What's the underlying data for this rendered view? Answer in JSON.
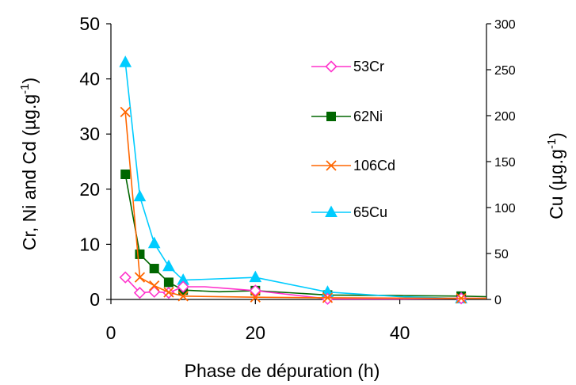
{
  "chart_data": {
    "type": "line",
    "title": "",
    "xlabel": "Phase de dépuration (h)",
    "ylabel": "Cr, Ni and Cd (µg.g-1)",
    "ylabel_parts": [
      "Cr, Ni and Cd (µg.g",
      "-1",
      ")"
    ],
    "y2label": "Cu (µg.g-1)",
    "y2label_parts": [
      "Cu (µg.g",
      "-1",
      ")"
    ],
    "xlim": [
      0,
      52
    ],
    "ylim": [
      0,
      50
    ],
    "y2lim": [
      0,
      300
    ],
    "x_ticks": [
      "0",
      "20",
      "40"
    ],
    "y_ticks": [
      "0",
      "10",
      "20",
      "30",
      "40",
      "50"
    ],
    "y2_ticks": [
      "0",
      "50",
      "100",
      "150",
      "200",
      "250",
      "300"
    ],
    "grid": false,
    "legend_position": "top-right-inside",
    "series": [
      {
        "name": "53Cr",
        "axis": "left",
        "color": "#ff33cc",
        "marker": "diamond-open",
        "points": [
          [
            2,
            4.0
          ],
          [
            4,
            1.2
          ],
          [
            6,
            1.4
          ],
          [
            8,
            1.2
          ],
          [
            10,
            2.3
          ],
          [
            20,
            1.6
          ],
          [
            30,
            0.1
          ],
          [
            48.5,
            0.2
          ]
        ],
        "line": [
          [
            2,
            4.0
          ],
          [
            4,
            1.2
          ],
          [
            6,
            1.4
          ],
          [
            8,
            1.2
          ],
          [
            10,
            2.3
          ],
          [
            13,
            2.3
          ],
          [
            16,
            2.0
          ],
          [
            20,
            1.6
          ],
          [
            30,
            0.1
          ],
          [
            40,
            0.1
          ],
          [
            48.5,
            0.2
          ],
          [
            52,
            0.2
          ]
        ]
      },
      {
        "name": "62Ni",
        "axis": "left",
        "color": "#006600",
        "marker": "square",
        "points": [
          [
            2,
            22.7
          ],
          [
            4,
            8.2
          ],
          [
            6,
            5.6
          ],
          [
            8,
            3.1
          ],
          [
            10,
            1.7
          ],
          [
            20,
            1.6
          ],
          [
            30,
            0.8
          ],
          [
            48.5,
            0.6
          ]
        ],
        "line": [
          [
            2,
            22.7
          ],
          [
            4,
            8.2
          ],
          [
            6,
            5.6
          ],
          [
            8,
            3.1
          ],
          [
            10,
            1.7
          ],
          [
            15,
            1.4
          ],
          [
            20,
            1.6
          ],
          [
            30,
            0.8
          ],
          [
            40,
            0.7
          ],
          [
            48.5,
            0.6
          ],
          [
            52,
            0.5
          ]
        ]
      },
      {
        "name": "106Cd",
        "axis": "left",
        "color": "#ff6600",
        "marker": "x",
        "points": [
          [
            2,
            34.0
          ],
          [
            4,
            4.0
          ],
          [
            6,
            2.5
          ],
          [
            8,
            1.3
          ],
          [
            10,
            0.6
          ],
          [
            20,
            0.4
          ],
          [
            30,
            0.3
          ],
          [
            48.5,
            0.2
          ]
        ],
        "line": [
          [
            2,
            34.0
          ],
          [
            4,
            4.0
          ],
          [
            6,
            2.5
          ],
          [
            8,
            1.3
          ],
          [
            10,
            0.6
          ],
          [
            20,
            0.4
          ],
          [
            30,
            0.3
          ],
          [
            48.5,
            0.2
          ],
          [
            52,
            0.2
          ]
        ]
      },
      {
        "name": "65Cu",
        "axis": "right",
        "color": "#00ccff",
        "marker": "triangle",
        "points": [
          [
            2,
            258
          ],
          [
            4,
            112
          ],
          [
            6,
            61
          ],
          [
            8,
            36
          ],
          [
            10,
            21
          ],
          [
            20,
            24
          ],
          [
            30,
            8
          ],
          [
            48.5,
            1
          ]
        ],
        "line": [
          [
            2,
            258
          ],
          [
            4,
            112
          ],
          [
            6,
            61
          ],
          [
            8,
            36
          ],
          [
            10,
            21
          ],
          [
            20,
            24
          ],
          [
            30,
            8
          ],
          [
            40,
            3
          ],
          [
            48.5,
            1
          ],
          [
            52,
            1
          ]
        ]
      }
    ]
  }
}
